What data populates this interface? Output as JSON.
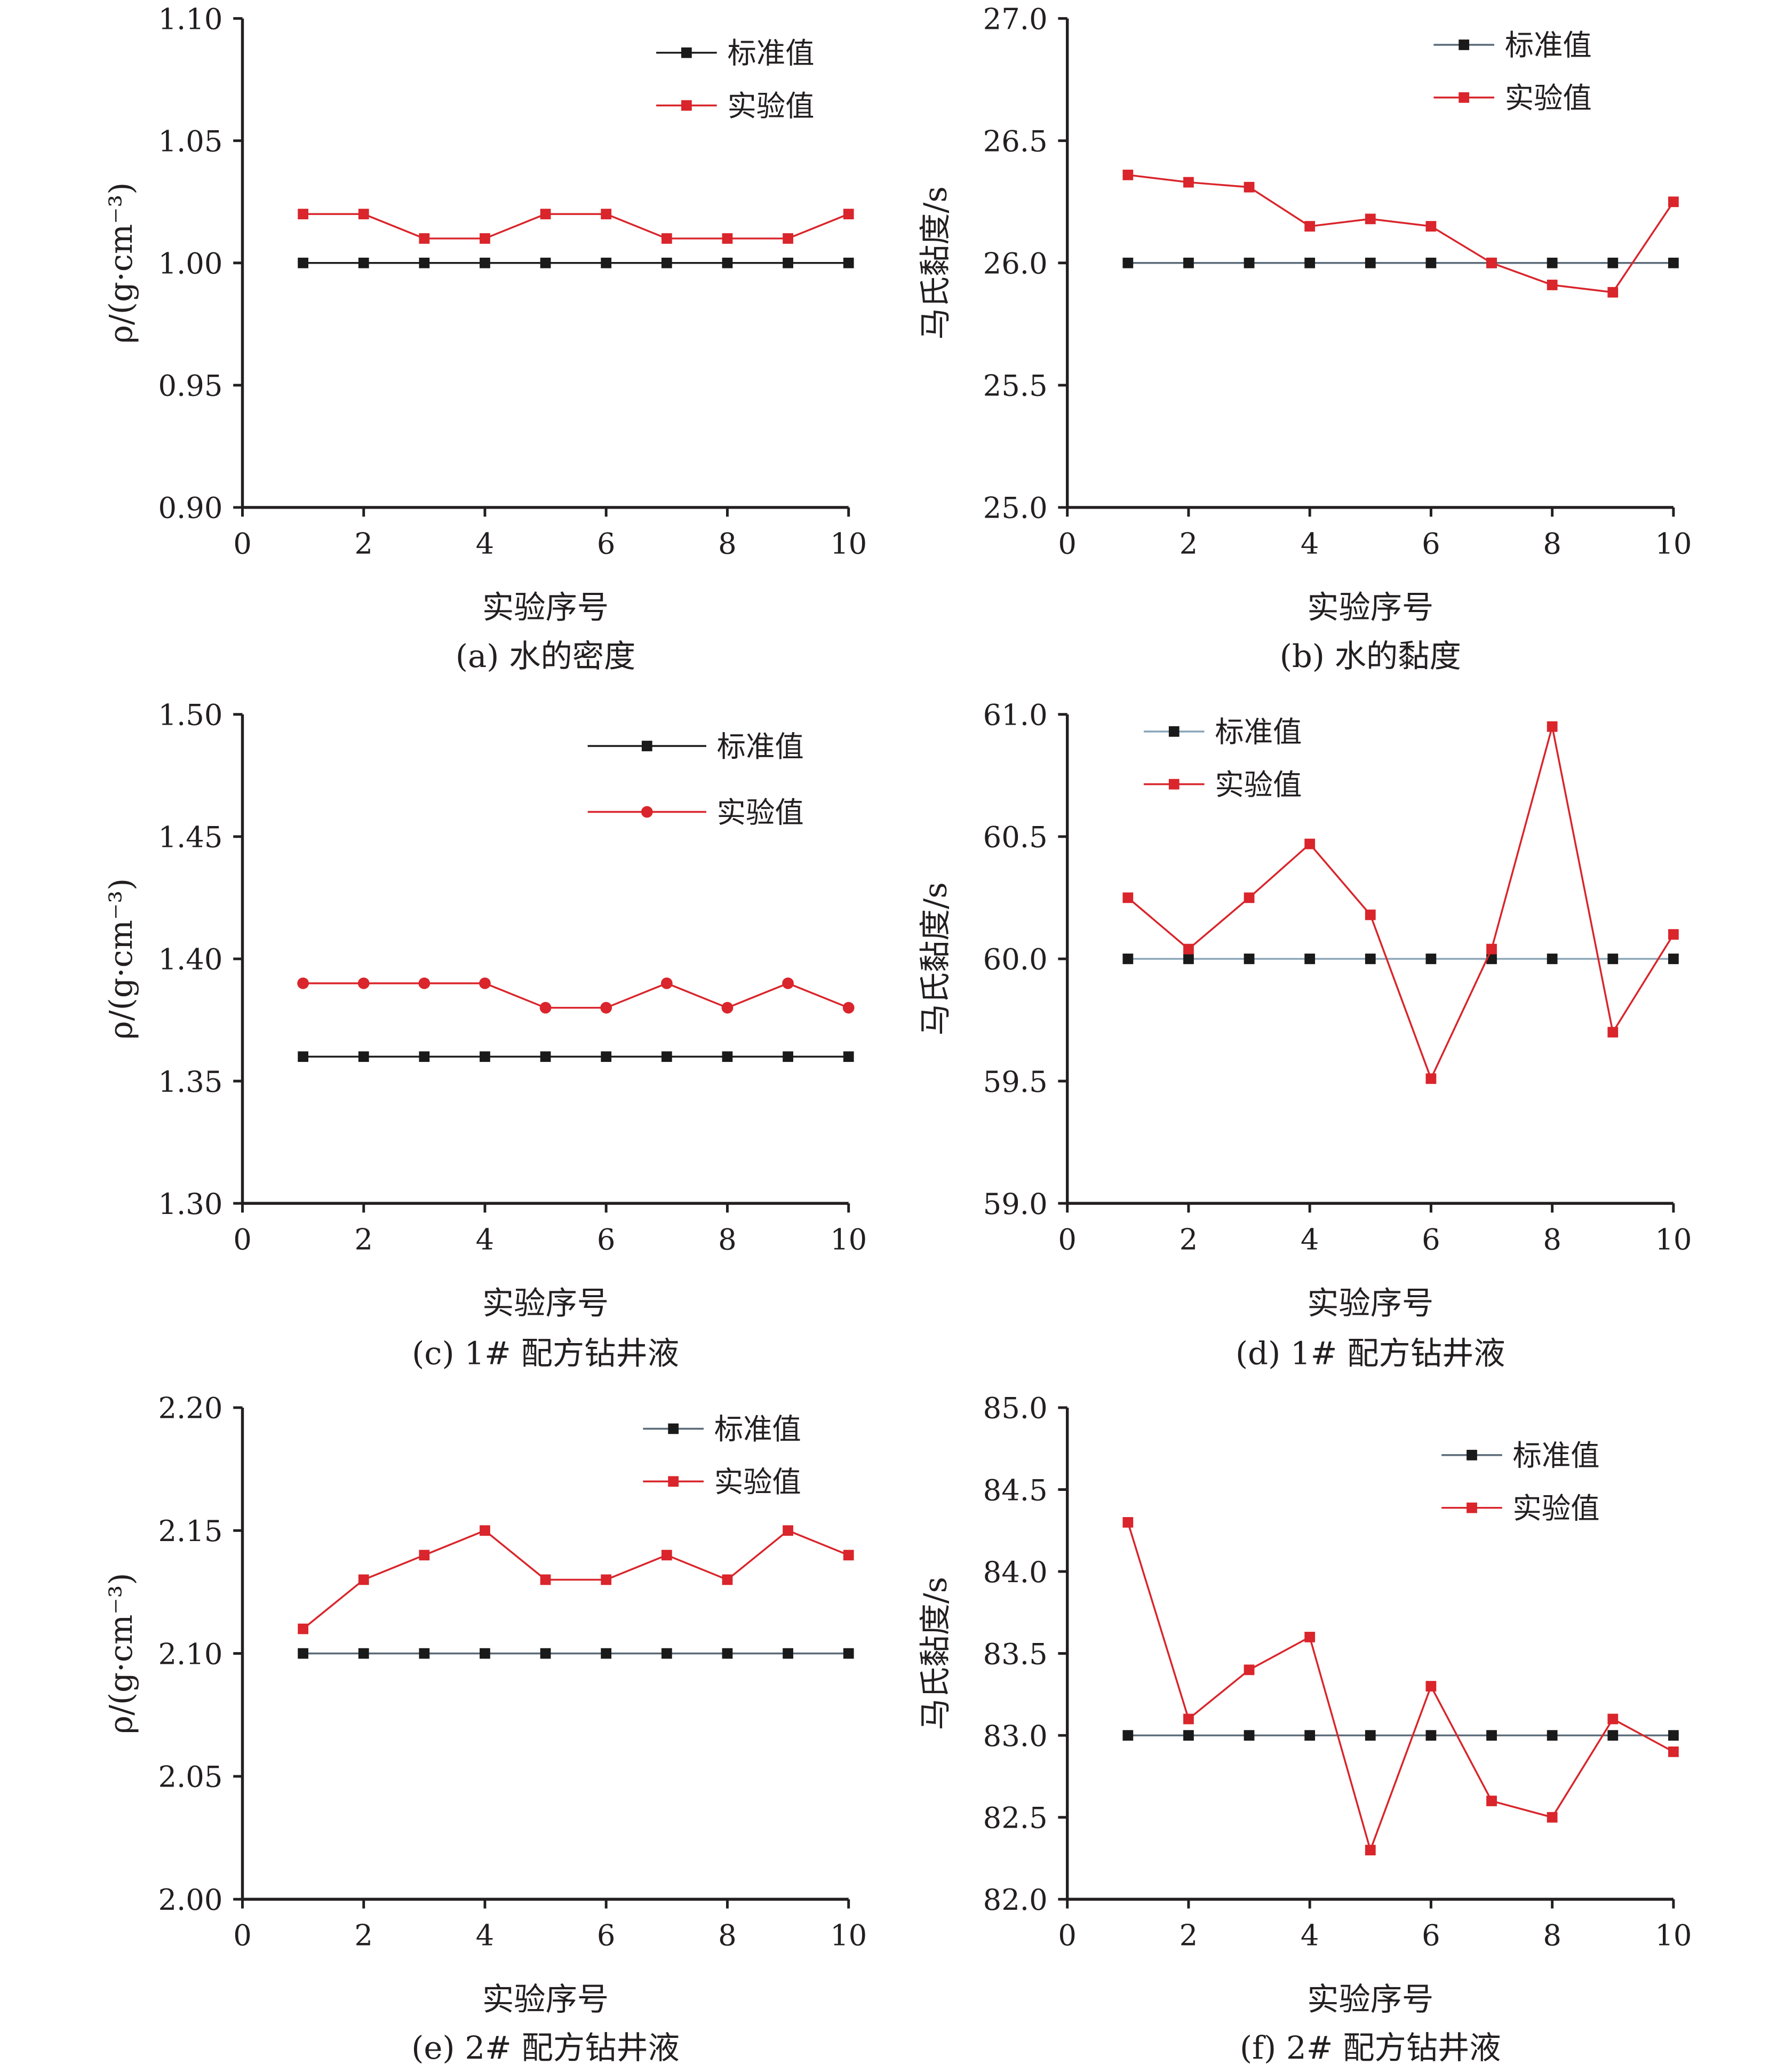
{
  "figure": {
    "colors": {
      "standard": "#1a1a1a",
      "experimental": "#d9252b",
      "standard_line_alt": "#8aa5b8",
      "axis": "#231f20"
    }
  },
  "chart_data": [
    {
      "id": "a",
      "type": "line",
      "caption": "(a) 水的密度",
      "ylabel": "ρ/(g·cm⁻³)",
      "xlabel": "实验序号",
      "xlim": [
        0,
        10
      ],
      "xticks": [
        "0",
        "2",
        "4",
        "6",
        "8",
        "10"
      ],
      "ylim": [
        0.9,
        1.1
      ],
      "yticks": [
        "1.10",
        "1.05",
        "1.00",
        "0.95",
        "0.90"
      ],
      "legend_position": "top-right",
      "x": [
        1,
        2,
        3,
        4,
        5,
        6,
        7,
        8,
        9,
        10
      ],
      "series": [
        {
          "name": "标准值",
          "marker": "square",
          "color": "#1a1a1a",
          "line_color": "#1a1a1a",
          "values": [
            1.0,
            1.0,
            1.0,
            1.0,
            1.0,
            1.0,
            1.0,
            1.0,
            1.0,
            1.0
          ]
        },
        {
          "name": "实验值",
          "marker": "square",
          "color": "#d9252b",
          "line_color": "#d9252b",
          "values": [
            1.02,
            1.02,
            1.01,
            1.01,
            1.02,
            1.02,
            1.01,
            1.01,
            1.01,
            1.02
          ]
        }
      ]
    },
    {
      "id": "b",
      "type": "line",
      "caption": "(b) 水的黏度",
      "ylabel": "马氏黏度/s",
      "xlabel": "实验序号",
      "xlim": [
        0,
        10
      ],
      "xticks": [
        "0",
        "2",
        "4",
        "6",
        "8",
        "10"
      ],
      "ylim": [
        25.0,
        27.0
      ],
      "yticks": [
        "27.0",
        "26.5",
        "26.0",
        "25.5",
        "25.0"
      ],
      "legend_position": "top-right",
      "x": [
        1,
        2,
        3,
        4,
        5,
        6,
        7,
        8,
        9,
        10
      ],
      "series": [
        {
          "name": "标准值",
          "marker": "square",
          "color": "#1a1a1a",
          "line_color": "#5a6a78",
          "values": [
            26.0,
            26.0,
            26.0,
            26.0,
            26.0,
            26.0,
            26.0,
            26.0,
            26.0,
            26.0
          ]
        },
        {
          "name": "实验值",
          "marker": "square",
          "color": "#d9252b",
          "line_color": "#d9252b",
          "values": [
            26.36,
            26.33,
            26.31,
            26.15,
            26.18,
            26.15,
            26.0,
            25.91,
            25.88,
            26.25
          ]
        }
      ]
    },
    {
      "id": "c",
      "type": "line",
      "caption": "(c) 1# 配方钻井液",
      "ylabel": "ρ/(g·cm⁻³)",
      "xlabel": "实验序号",
      "xlim": [
        0,
        10
      ],
      "xticks": [
        "0",
        "2",
        "4",
        "6",
        "8",
        "10"
      ],
      "ylim": [
        1.3,
        1.5
      ],
      "yticks": [
        "1.50",
        "1.45",
        "1.40",
        "1.35",
        "1.30"
      ],
      "legend_position": "top-right",
      "x": [
        1,
        2,
        3,
        4,
        5,
        6,
        7,
        8,
        9,
        10
      ],
      "series": [
        {
          "name": "标准值",
          "marker": "square",
          "color": "#1a1a1a",
          "line_color": "#1a1a1a",
          "values": [
            1.36,
            1.36,
            1.36,
            1.36,
            1.36,
            1.36,
            1.36,
            1.36,
            1.36,
            1.36
          ]
        },
        {
          "name": "实验值",
          "marker": "circle",
          "color": "#d9252b",
          "line_color": "#d9252b",
          "values": [
            1.39,
            1.39,
            1.39,
            1.39,
            1.38,
            1.38,
            1.39,
            1.38,
            1.39,
            1.38
          ]
        }
      ]
    },
    {
      "id": "d",
      "type": "line",
      "caption": "(d) 1# 配方钻井液",
      "ylabel": "马氏黏度/s",
      "xlabel": "实验序号",
      "xlim": [
        0,
        10
      ],
      "xticks": [
        "0",
        "2",
        "4",
        "6",
        "8",
        "10"
      ],
      "ylim": [
        59.0,
        61.0
      ],
      "yticks": [
        "61.0",
        "60.5",
        "60.0",
        "59.5",
        "59.0"
      ],
      "legend_position": "top-left",
      "x": [
        1,
        2,
        3,
        4,
        5,
        6,
        7,
        8,
        9,
        10
      ],
      "series": [
        {
          "name": "标准值",
          "marker": "square",
          "color": "#1a1a1a",
          "line_color": "#8aa5b8",
          "values": [
            60.0,
            60.0,
            60.0,
            60.0,
            60.0,
            60.0,
            60.0,
            60.0,
            60.0,
            60.0
          ]
        },
        {
          "name": "实验值",
          "marker": "square",
          "color": "#d9252b",
          "line_color": "#d9252b",
          "values": [
            60.25,
            60.04,
            60.25,
            60.47,
            60.18,
            59.51,
            60.04,
            60.95,
            59.7,
            60.1
          ]
        }
      ]
    },
    {
      "id": "e",
      "type": "line",
      "caption": "(e) 2# 配方钻井液",
      "ylabel": "ρ/(g·cm⁻³)",
      "xlabel": "实验序号",
      "xlim": [
        0,
        10
      ],
      "xticks": [
        "0",
        "2",
        "4",
        "6",
        "8",
        "10"
      ],
      "ylim": [
        2.0,
        2.2
      ],
      "yticks": [
        "2.20",
        "2.15",
        "2.10",
        "2.05",
        "2.00"
      ],
      "legend_position": "top-right",
      "x": [
        1,
        2,
        3,
        4,
        5,
        6,
        7,
        8,
        9,
        10
      ],
      "series": [
        {
          "name": "标准值",
          "marker": "square",
          "color": "#1a1a1a",
          "line_color": "#5a6a78",
          "values": [
            2.1,
            2.1,
            2.1,
            2.1,
            2.1,
            2.1,
            2.1,
            2.1,
            2.1,
            2.1
          ]
        },
        {
          "name": "实验值",
          "marker": "square",
          "color": "#d9252b",
          "line_color": "#d9252b",
          "values": [
            2.11,
            2.13,
            2.14,
            2.15,
            2.13,
            2.13,
            2.14,
            2.13,
            2.15,
            2.14
          ]
        }
      ]
    },
    {
      "id": "f",
      "type": "line",
      "caption": "(f) 2# 配方钻井液",
      "ylabel": "马氏黏度/s",
      "xlabel": "实验序号",
      "xlim": [
        0,
        10
      ],
      "xticks": [
        "0",
        "2",
        "4",
        "6",
        "8",
        "10"
      ],
      "ylim": [
        82.0,
        85.0
      ],
      "yticks": [
        "85.0",
        "84.5",
        "84.0",
        "83.5",
        "83.0",
        "82.5",
        "82.0"
      ],
      "legend_position": "top-right",
      "x": [
        1,
        2,
        3,
        4,
        5,
        6,
        7,
        8,
        9,
        10
      ],
      "series": [
        {
          "name": "标准值",
          "marker": "square",
          "color": "#1a1a1a",
          "line_color": "#5a6a78",
          "values": [
            83.0,
            83.0,
            83.0,
            83.0,
            83.0,
            83.0,
            83.0,
            83.0,
            83.0,
            83.0
          ]
        },
        {
          "name": "实验值",
          "marker": "square",
          "color": "#d9252b",
          "line_color": "#d9252b",
          "values": [
            84.3,
            83.1,
            83.4,
            83.6,
            82.3,
            83.3,
            82.6,
            82.5,
            83.1,
            82.9
          ]
        }
      ]
    }
  ]
}
